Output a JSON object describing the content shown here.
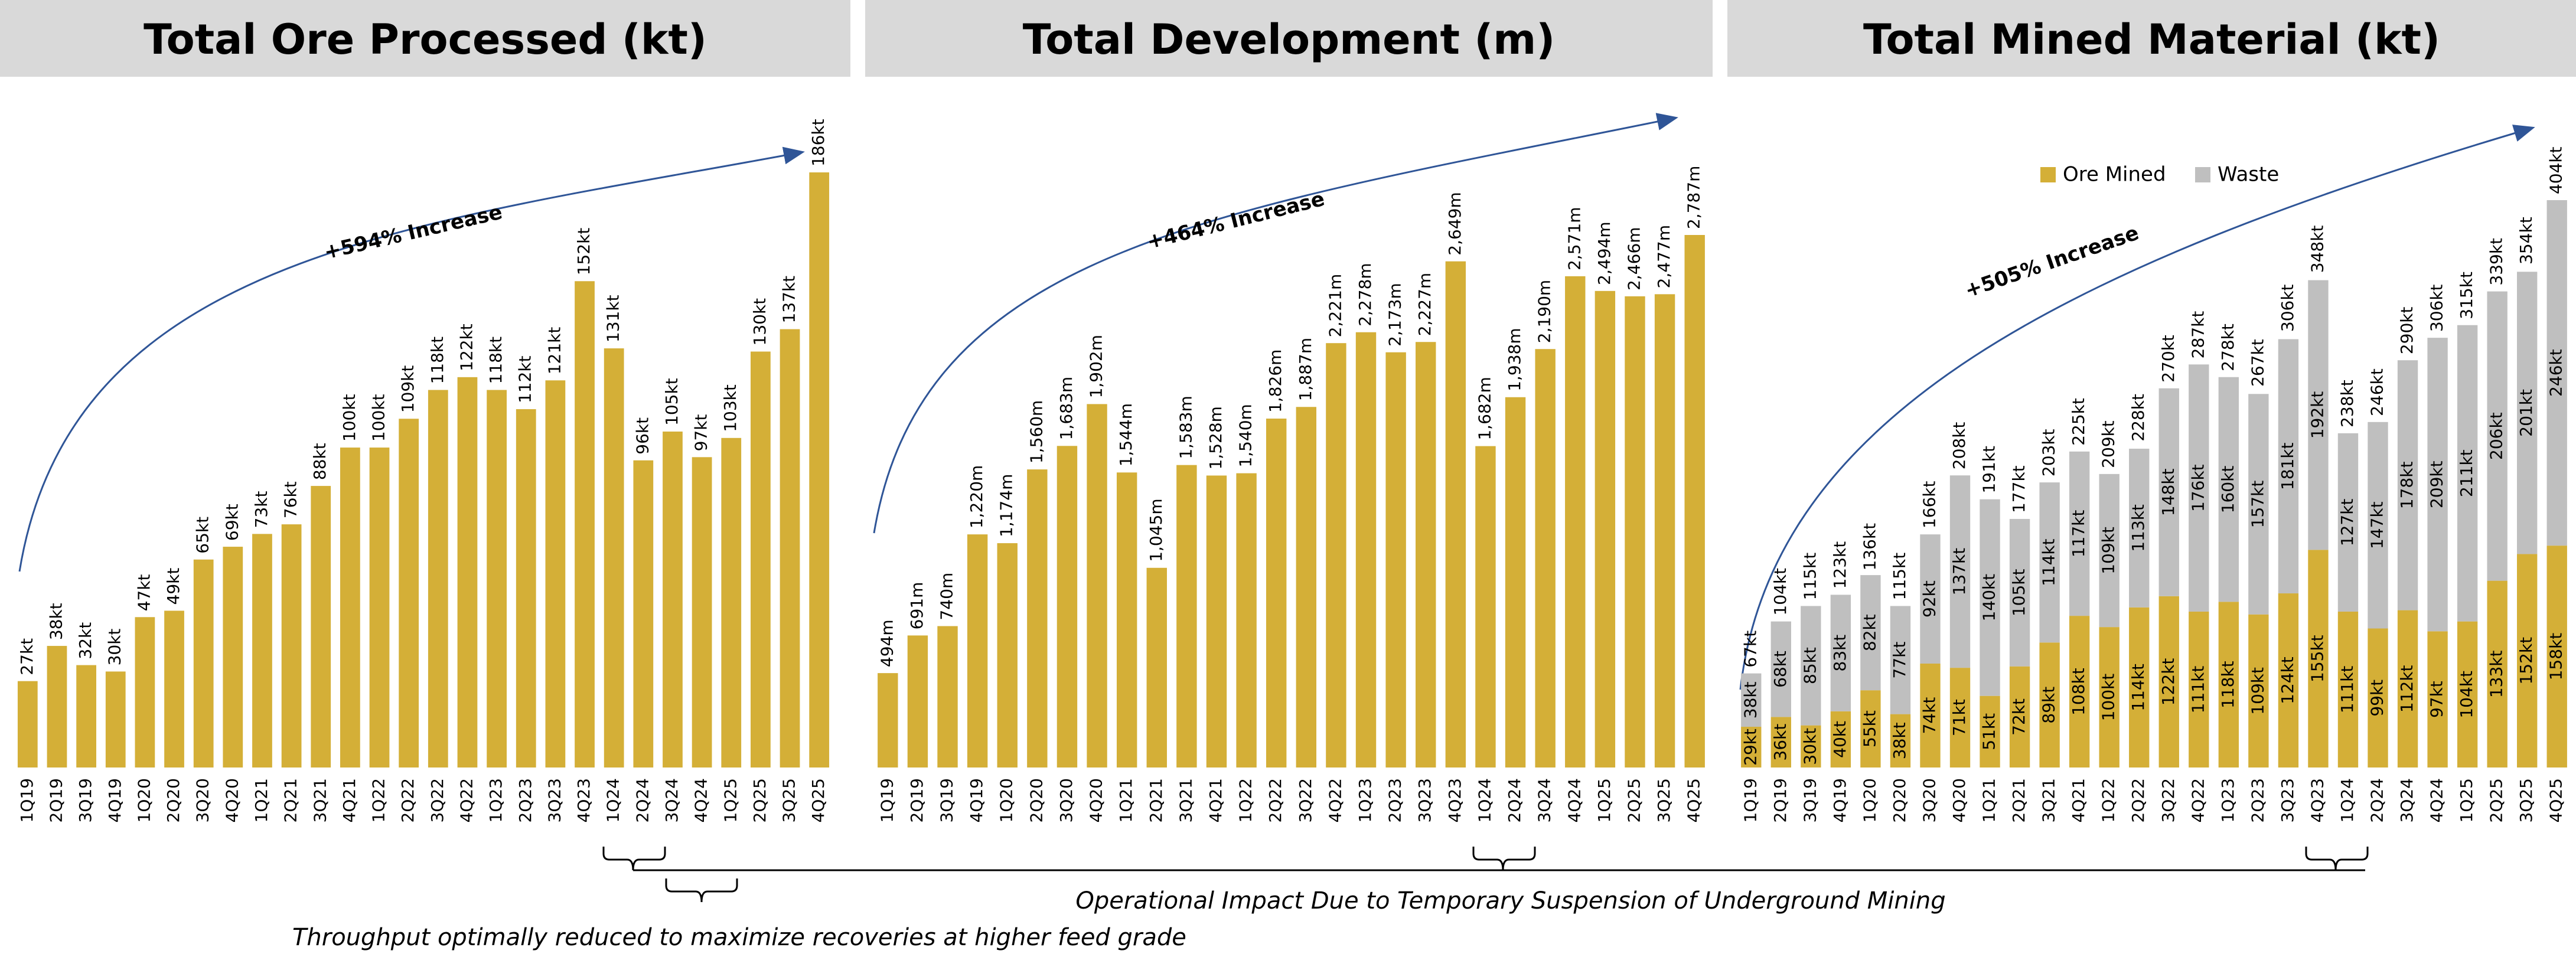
{
  "chart_data": [
    {
      "type": "bar",
      "title": "Total Ore Processed (kt)",
      "annotation": "+594% Increase",
      "color": "#D4AF37",
      "categories": [
        "1Q19",
        "2Q19",
        "3Q19",
        "4Q19",
        "1Q20",
        "2Q20",
        "3Q20",
        "4Q20",
        "1Q21",
        "2Q21",
        "3Q21",
        "4Q21",
        "1Q22",
        "2Q22",
        "3Q22",
        "4Q22",
        "1Q23",
        "2Q23",
        "3Q23",
        "4Q23",
        "1Q24",
        "2Q24",
        "3Q24",
        "4Q24",
        "1Q25",
        "2Q25",
        "3Q25",
        "4Q25"
      ],
      "values": [
        27,
        38,
        32,
        30,
        47,
        49,
        65,
        69,
        73,
        76,
        88,
        100,
        100,
        109,
        118,
        122,
        118,
        112,
        121,
        152,
        131,
        96,
        105,
        97,
        103,
        130,
        137,
        186
      ],
      "value_labels": [
        "27kt",
        "38kt",
        "32kt",
        "30kt",
        "47kt",
        "49kt",
        "65kt",
        "69kt",
        "73kt",
        "76kt",
        "88kt",
        "100kt",
        "100kt",
        "109kt",
        "118kt",
        "122kt",
        "118kt",
        "112kt",
        "121kt",
        "152kt",
        "131kt",
        "96kt",
        "105kt",
        "97kt",
        "103kt",
        "130kt",
        "137kt",
        "186kt"
      ]
    },
    {
      "type": "bar",
      "title": "Total Development (m)",
      "annotation": "+464% Increase",
      "color": "#D4AF37",
      "categories": [
        "1Q19",
        "2Q19",
        "3Q19",
        "4Q19",
        "1Q20",
        "2Q20",
        "3Q20",
        "4Q20",
        "1Q21",
        "2Q21",
        "3Q21",
        "4Q21",
        "1Q22",
        "2Q22",
        "3Q22",
        "4Q22",
        "1Q23",
        "2Q23",
        "3Q23",
        "4Q23",
        "1Q24",
        "2Q24",
        "3Q24",
        "4Q24",
        "1Q25",
        "2Q25",
        "3Q25",
        "4Q25"
      ],
      "values": [
        494,
        691,
        740,
        1220,
        1174,
        1560,
        1683,
        1902,
        1544,
        1045,
        1583,
        1528,
        1540,
        1826,
        1887,
        2221,
        2278,
        2173,
        2227,
        2649,
        1682,
        1938,
        2190,
        2571,
        2494,
        2466,
        2477,
        2787
      ],
      "value_labels": [
        "494m",
        "691m",
        "740m",
        "1,220m",
        "1,174m",
        "1,560m",
        "1,683m",
        "1,902m",
        "1,544m",
        "1,045m",
        "1,583m",
        "1,528m",
        "1,540m",
        "1,826m",
        "1,887m",
        "2,221m",
        "2,278m",
        "2,173m",
        "2,227m",
        "2,649m",
        "1,682m",
        "1,938m",
        "2,190m",
        "2,571m",
        "2,494m",
        "2,466m",
        "2,477m",
        "2,787m"
      ]
    },
    {
      "type": "stacked_bar",
      "title": "Total Mined Material (kt)",
      "annotation": "+505% Increase",
      "categories": [
        "1Q19",
        "2Q19",
        "3Q19",
        "4Q19",
        "1Q20",
        "2Q20",
        "3Q20",
        "4Q20",
        "1Q21",
        "2Q21",
        "3Q21",
        "4Q21",
        "1Q22",
        "2Q22",
        "3Q22",
        "4Q22",
        "1Q23",
        "2Q23",
        "3Q23",
        "4Q23",
        "1Q24",
        "2Q24",
        "3Q24",
        "4Q24",
        "1Q25",
        "2Q25",
        "3Q25",
        "4Q25"
      ],
      "series": [
        {
          "name": "Ore Mined",
          "color": "#D4AF37",
          "values": [
            29,
            36,
            30,
            40,
            55,
            38,
            74,
            71,
            51,
            72,
            89,
            108,
            100,
            114,
            122,
            111,
            118,
            109,
            124,
            155,
            111,
            99,
            112,
            97,
            104,
            133,
            152,
            158
          ],
          "value_labels": [
            "29kt",
            "36kt",
            "30kt",
            "40kt",
            "55kt",
            "38kt",
            "74kt",
            "71kt",
            "51kt",
            "72kt",
            "89kt",
            "108kt",
            "100kt",
            "114kt",
            "122kt",
            "111kt",
            "118kt",
            "109kt",
            "124kt",
            "155kt",
            "111kt",
            "99kt",
            "112kt",
            "97kt",
            "104kt",
            "133kt",
            "152kt",
            "158kt"
          ]
        },
        {
          "name": "Waste",
          "color": "#BFBFBF",
          "values": [
            38,
            68,
            85,
            83,
            82,
            77,
            92,
            137,
            140,
            105,
            114,
            117,
            109,
            113,
            148,
            176,
            160,
            157,
            181,
            192,
            127,
            147,
            178,
            209,
            211,
            206,
            201,
            246
          ],
          "value_labels": [
            "38kt",
            "68kt",
            "85kt",
            "83kt",
            "82kt",
            "77kt",
            "92kt",
            "137kt",
            "140kt",
            "105kt",
            "114kt",
            "117kt",
            "109kt",
            "113kt",
            "148kt",
            "176kt",
            "160kt",
            "157kt",
            "181kt",
            "192kt",
            "127kt",
            "147kt",
            "178kt",
            "209kt",
            "211kt",
            "206kt",
            "201kt",
            "246kt"
          ]
        }
      ],
      "totals": [
        67,
        104,
        115,
        123,
        136,
        115,
        166,
        208,
        191,
        177,
        203,
        225,
        209,
        228,
        270,
        287,
        278,
        267,
        306,
        348,
        238,
        246,
        290,
        306,
        315,
        339,
        354,
        404
      ],
      "total_labels": [
        "67kt",
        "104kt",
        "115kt",
        "123kt",
        "136kt",
        "115kt",
        "166kt",
        "208kt",
        "191kt",
        "177kt",
        "203kt",
        "225kt",
        "209kt",
        "228kt",
        "270kt",
        "287kt",
        "278kt",
        "267kt",
        "306kt",
        "348kt",
        "238kt",
        "246kt",
        "290kt",
        "306kt",
        "315kt",
        "339kt",
        "354kt",
        "404kt"
      ]
    }
  ],
  "annotations": [
    "Operational Impact Due to Temporary Suspension of Underground Mining",
    "Throughput optimally reduced to maximize recoveries at higher feed grade"
  ]
}
